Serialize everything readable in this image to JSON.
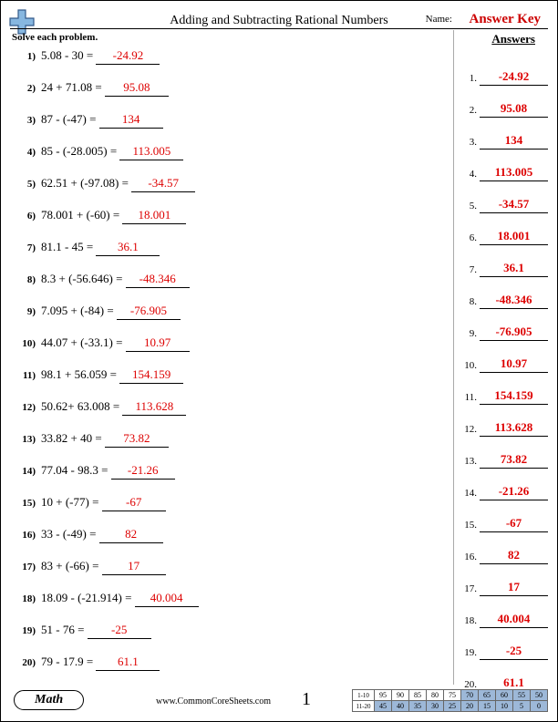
{
  "header": {
    "title": "Adding and Subtracting Rational Numbers",
    "name_label": "Name:",
    "answer_key": "Answer Key",
    "instructions": "Solve each problem.",
    "answers_label": "Answers"
  },
  "problems": [
    {
      "n": "1)",
      "expr": "5.08 - 30 = ",
      "ans": "-24.92"
    },
    {
      "n": "2)",
      "expr": "24 + 71.08 = ",
      "ans": "95.08"
    },
    {
      "n": "3)",
      "expr": "87 - (-47) = ",
      "ans": "134"
    },
    {
      "n": "4)",
      "expr": "85 - (-28.005) = ",
      "ans": "113.005"
    },
    {
      "n": "5)",
      "expr": "62.51 + (-97.08) = ",
      "ans": "-34.57"
    },
    {
      "n": "6)",
      "expr": "78.001 + (-60) = ",
      "ans": "18.001"
    },
    {
      "n": "7)",
      "expr": "81.1 - 45 = ",
      "ans": "36.1"
    },
    {
      "n": "8)",
      "expr": "8.3 + (-56.646) = ",
      "ans": "-48.346"
    },
    {
      "n": "9)",
      "expr": "7.095 + (-84) = ",
      "ans": "-76.905"
    },
    {
      "n": "10)",
      "expr": "44.07 + (-33.1) = ",
      "ans": "10.97"
    },
    {
      "n": "11)",
      "expr": "98.1 + 56.059 = ",
      "ans": "154.159"
    },
    {
      "n": "12)",
      "expr": "50.62+ 63.008 = ",
      "ans": "113.628"
    },
    {
      "n": "13)",
      "expr": "33.82 + 40 = ",
      "ans": "73.82"
    },
    {
      "n": "14)",
      "expr": "77.04 - 98.3 = ",
      "ans": "-21.26"
    },
    {
      "n": "15)",
      "expr": "10 + (-77) = ",
      "ans": "-67"
    },
    {
      "n": "16)",
      "expr": "33 - (-49) = ",
      "ans": "82"
    },
    {
      "n": "17)",
      "expr": "83 + (-66) = ",
      "ans": "17"
    },
    {
      "n": "18)",
      "expr": "18.09 - (-21.914) = ",
      "ans": "40.004"
    },
    {
      "n": "19)",
      "expr": "51 - 76 = ",
      "ans": "-25"
    },
    {
      "n": "20)",
      "expr": "79 - 17.9 = ",
      "ans": "61.1"
    }
  ],
  "answers": [
    {
      "n": "1.",
      "v": "-24.92"
    },
    {
      "n": "2.",
      "v": "95.08"
    },
    {
      "n": "3.",
      "v": "134"
    },
    {
      "n": "4.",
      "v": "113.005"
    },
    {
      "n": "5.",
      "v": "-34.57"
    },
    {
      "n": "6.",
      "v": "18.001"
    },
    {
      "n": "7.",
      "v": "36.1"
    },
    {
      "n": "8.",
      "v": "-48.346"
    },
    {
      "n": "9.",
      "v": "-76.905"
    },
    {
      "n": "10.",
      "v": "10.97"
    },
    {
      "n": "11.",
      "v": "154.159"
    },
    {
      "n": "12.",
      "v": "113.628"
    },
    {
      "n": "13.",
      "v": "73.82"
    },
    {
      "n": "14.",
      "v": "-21.26"
    },
    {
      "n": "15.",
      "v": "-67"
    },
    {
      "n": "16.",
      "v": "82"
    },
    {
      "n": "17.",
      "v": "17"
    },
    {
      "n": "18.",
      "v": "40.004"
    },
    {
      "n": "19.",
      "v": "-25"
    },
    {
      "n": "20.",
      "v": "61.1"
    }
  ],
  "footer": {
    "subject": "Math",
    "site": "www.CommonCoreSheets.com",
    "page": "1",
    "grid": {
      "row1_label": "1-10",
      "row2_label": "11-20",
      "row1": [
        "95",
        "90",
        "85",
        "80",
        "75",
        "70",
        "65",
        "60",
        "55",
        "50"
      ],
      "row2": [
        "45",
        "40",
        "35",
        "30",
        "25",
        "20",
        "15",
        "10",
        "5",
        "0"
      ],
      "shade_start_col": 5
    }
  },
  "colors": {
    "answer_red": "#dd0000",
    "key_red": "#cc0000",
    "grid_shade": "#9db8d8",
    "logo_blue": "#87b7e0",
    "logo_outline": "#335a8a"
  }
}
